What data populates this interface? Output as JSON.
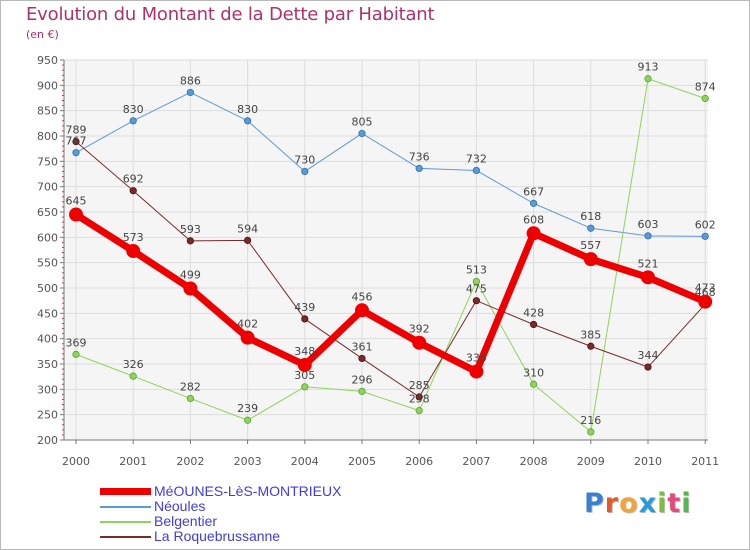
{
  "header": {
    "title": "Evolution du Montant de la Dette par Habitant",
    "unit": "(en €)"
  },
  "chart_data": {
    "type": "line",
    "title": "Evolution du Montant de la Dette par Habitant",
    "subtitle": "(en €)",
    "xlabel": "",
    "ylabel": "",
    "categories": [
      "2000",
      "2001",
      "2002",
      "2003",
      "2004",
      "2005",
      "2006",
      "2007",
      "2008",
      "2009",
      "2010",
      "2011"
    ],
    "ylim": [
      200,
      950
    ],
    "yticks": [
      200,
      250,
      300,
      350,
      400,
      450,
      500,
      550,
      600,
      650,
      700,
      750,
      800,
      850,
      900,
      950
    ],
    "grid": true,
    "legend_position": "bottom-left",
    "series": [
      {
        "name": "MéOUNES-LèS-MONTRIEUX",
        "color": "#ee0000",
        "values": [
          645,
          573,
          499,
          402,
          348,
          456,
          392,
          335,
          608,
          557,
          521,
          473
        ]
      },
      {
        "name": "Néoules",
        "color": "#5b9bd5",
        "values": [
          767,
          830,
          886,
          830,
          730,
          805,
          736,
          732,
          667,
          618,
          603,
          602
        ]
      },
      {
        "name": "Belgentier",
        "color": "#8fd45a",
        "values": [
          369,
          326,
          282,
          239,
          305,
          296,
          258,
          513,
          310,
          216,
          913,
          874
        ]
      },
      {
        "name": "La Roquebrussanne",
        "color": "#7a2a2a",
        "values": [
          789,
          692,
          593,
          594,
          439,
          361,
          285,
          475,
          428,
          385,
          344,
          468
        ]
      }
    ]
  },
  "legend": {
    "items": [
      {
        "label": "MéOUNES-LèS-MONTRIEUX"
      },
      {
        "label": "Néoules"
      },
      {
        "label": "Belgentier"
      },
      {
        "label": "La Roquebrussanne"
      }
    ]
  },
  "logo": {
    "letters": [
      "P",
      "r",
      "o",
      "x",
      "i",
      "t",
      "i"
    ],
    "colors": [
      "#3a7fd0",
      "#e5592a",
      "#f2a43a",
      "#2a9bd6",
      "#7bbf3a",
      "#e24a7a",
      "#56b84a"
    ]
  }
}
